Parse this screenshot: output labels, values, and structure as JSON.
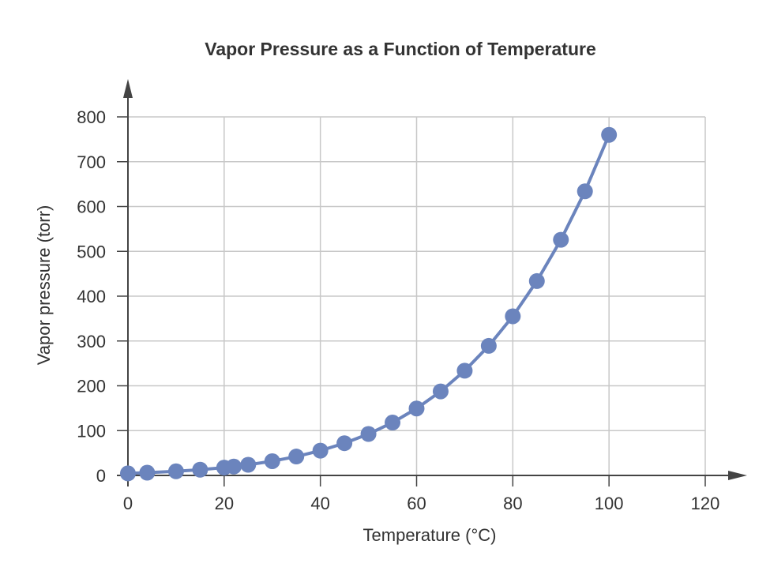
{
  "chart_data": {
    "type": "line",
    "title": "Vapor Pressure as a Function of Temperature",
    "xlabel": "Temperature (°C)",
    "ylabel": "Vapor pressure (torr)",
    "xlim": [
      0,
      120
    ],
    "ylim": [
      0,
      800
    ],
    "xticks": [
      0,
      20,
      40,
      60,
      80,
      100,
      120
    ],
    "yticks": [
      0,
      100,
      200,
      300,
      400,
      500,
      600,
      700,
      800
    ],
    "grid": true,
    "markers": true,
    "color": "#6b84bd",
    "x": [
      0,
      4,
      10,
      15,
      20,
      22,
      25,
      30,
      35,
      40,
      45,
      50,
      55,
      60,
      65,
      70,
      75,
      80,
      85,
      90,
      95,
      100
    ],
    "y": [
      4.6,
      6.1,
      9.2,
      12.8,
      17.5,
      19.8,
      23.8,
      31.8,
      42.2,
      55.3,
      71.9,
      92.5,
      118.0,
      149.4,
      187.5,
      233.7,
      289.1,
      355.1,
      433.6,
      525.8,
      633.9,
      760.0
    ]
  }
}
